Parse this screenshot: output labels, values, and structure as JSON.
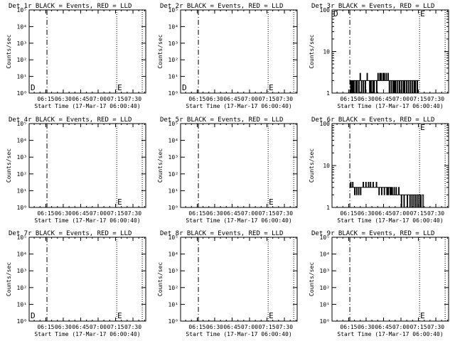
{
  "figure": {
    "background": "#ffffff",
    "foreground": "#000000",
    "event_color": "#000000",
    "lld_color": "#ff0000",
    "xlabel": "Start Time (17-Mar-17 06:00:40)",
    "ylabel": "Counts/sec",
    "x_tick_labels": [
      "06:15",
      "06:30",
      "06:45",
      "07:00",
      "07:15",
      "07:30"
    ]
  },
  "chart_data": [
    {
      "type": "line",
      "title": "Det 1r BLACK = Events, RED = LLD",
      "yscale": "log",
      "ylim": [
        1,
        100000
      ],
      "y_tick_labels": [
        "10⁰",
        "10¹",
        "10²",
        "10³",
        "10⁴",
        "10⁵"
      ],
      "xlim": [
        "06:00:40",
        "07:41:00"
      ],
      "markers": [
        {
          "label": "D",
          "x": "06:01:30",
          "style": "none"
        },
        {
          "label": "",
          "x": "06:16:00",
          "style": "dashdot"
        },
        {
          "label": "E",
          "x": "07:16:00",
          "style": "dotted"
        },
        {
          "label": "",
          "x": "07:38:00",
          "style": "dotted"
        }
      ],
      "series": []
    },
    {
      "type": "line",
      "title": "Det 2r BLACK = Events, RED = LLD",
      "yscale": "log",
      "ylim": [
        1,
        100000
      ],
      "y_tick_labels": [
        "10⁰",
        "10¹",
        "10²",
        "10³",
        "10⁴",
        "10⁵"
      ],
      "xlim": [
        "06:00:40",
        "07:41:00"
      ],
      "markers": [
        {
          "label": "D",
          "x": "06:01:30",
          "style": "none"
        },
        {
          "label": "",
          "x": "06:16:00",
          "style": "dashdot"
        },
        {
          "label": "E",
          "x": "07:16:00",
          "style": "dotted"
        },
        {
          "label": "",
          "x": "07:38:00",
          "style": "dotted"
        }
      ],
      "series": []
    },
    {
      "type": "line",
      "title": "Det 3r BLACK = Events, RED = LLD",
      "yscale": "log",
      "ylim": [
        1,
        100
      ],
      "y_tick_labels": [
        "1",
        "10",
        "100"
      ],
      "xlim": [
        "06:00:40",
        "07:41:00"
      ],
      "markers": [
        {
          "label": "D",
          "x": "06:01:30",
          "style": "none"
        },
        {
          "label": "",
          "x": "06:16:00",
          "style": "dashdot"
        },
        {
          "label": "E",
          "x": "07:16:00",
          "style": "dotted"
        },
        {
          "label": "",
          "x": "07:38:00",
          "style": "dotted"
        }
      ],
      "series": [
        {
          "x_start": "06:16:00",
          "x_end": "07:16:00",
          "values": [
            1,
            2,
            1,
            2,
            1,
            2,
            1,
            2,
            2,
            1,
            2,
            1,
            2,
            2,
            1,
            2,
            3,
            2,
            1,
            2,
            2,
            1,
            2,
            2,
            1,
            2,
            2,
            3,
            2,
            2,
            2,
            1,
            2,
            1,
            2,
            2,
            1,
            2,
            1,
            2,
            2,
            2,
            1,
            2,
            3,
            2,
            2,
            3,
            2,
            3,
            2,
            2,
            3,
            2,
            3,
            2,
            2,
            3,
            2,
            2,
            3,
            2,
            1,
            2,
            2,
            1,
            2,
            2,
            1,
            2,
            1,
            2,
            1,
            2,
            2,
            1,
            2,
            2,
            1,
            2,
            2,
            1,
            2,
            2,
            1,
            2,
            1,
            2,
            2,
            1,
            2,
            2,
            1,
            2,
            2,
            1,
            2,
            2,
            1,
            2,
            2,
            1,
            2,
            1,
            2,
            2,
            1,
            2,
            2,
            2
          ]
        }
      ]
    },
    {
      "type": "line",
      "title": "Det 4r BLACK = Events, RED = LLD",
      "yscale": "log",
      "ylim": [
        1,
        100000
      ],
      "y_tick_labels": [
        "10⁰",
        "10¹",
        "10²",
        "10³",
        "10⁴",
        "10⁵"
      ],
      "xlim": [
        "06:00:40",
        "07:41:00"
      ],
      "markers": [
        {
          "label": "",
          "x": "06:16:00",
          "style": "dashdot"
        },
        {
          "label": "E",
          "x": "07:16:00",
          "style": "dotted"
        },
        {
          "label": "",
          "x": "07:38:00",
          "style": "dotted"
        }
      ],
      "series": []
    },
    {
      "type": "line",
      "title": "Det 5r BLACK = Events, RED = LLD",
      "yscale": "log",
      "ylim": [
        1,
        100000
      ],
      "y_tick_labels": [
        "10⁰",
        "10¹",
        "10²",
        "10³",
        "10⁴",
        "10⁵"
      ],
      "xlim": [
        "06:00:40",
        "07:41:00"
      ],
      "markers": [
        {
          "label": "",
          "x": "06:16:00",
          "style": "dashdot"
        },
        {
          "label": "E",
          "x": "07:16:00",
          "style": "dotted"
        },
        {
          "label": "",
          "x": "07:38:00",
          "style": "dotted"
        }
      ],
      "series": []
    },
    {
      "type": "line",
      "title": "Det 6r BLACK = Events, RED = LLD",
      "yscale": "log",
      "ylim": [
        1,
        100
      ],
      "y_tick_labels": [
        "1",
        "10",
        "100"
      ],
      "xlim": [
        "06:00:40",
        "07:41:00"
      ],
      "markers": [
        {
          "label": "",
          "x": "06:16:00",
          "style": "dashdot"
        },
        {
          "label": "E",
          "x": "07:16:00",
          "style": "dotted"
        },
        {
          "label": "",
          "x": "07:38:00",
          "style": "dotted"
        }
      ],
      "series": [
        {
          "x_start": "06:16:00",
          "x_end": "07:20:00",
          "values": [
            3,
            4,
            3,
            3,
            4,
            3,
            3,
            2,
            3,
            3,
            2,
            3,
            3,
            2,
            3,
            3,
            2,
            3,
            3,
            3,
            4,
            3,
            3,
            3,
            4,
            3,
            3,
            3,
            4,
            3,
            3,
            4,
            3,
            3,
            3,
            4,
            3,
            3,
            3,
            3,
            4,
            3,
            3,
            3,
            2,
            3,
            3,
            3,
            2,
            3,
            3,
            3,
            2,
            3,
            3,
            3,
            2,
            3,
            2,
            3,
            3,
            2,
            3,
            2,
            3,
            2,
            2,
            3,
            2,
            2,
            3,
            2,
            2,
            2,
            3,
            2,
            2,
            2,
            1,
            2,
            2,
            2,
            1,
            2,
            2,
            2,
            2,
            1,
            2,
            2,
            2,
            1,
            2,
            2,
            1,
            2,
            2,
            1,
            2,
            2,
            1,
            2,
            2,
            1,
            2,
            2,
            1,
            2,
            1,
            1,
            2,
            2,
            1
          ]
        }
      ]
    },
    {
      "type": "line",
      "title": "Det 7r BLACK = Events, RED = LLD",
      "yscale": "log",
      "ylim": [
        1,
        100000
      ],
      "y_tick_labels": [
        "10⁰",
        "10¹",
        "10²",
        "10³",
        "10⁴",
        "10⁵"
      ],
      "xlim": [
        "06:00:40",
        "07:41:00"
      ],
      "markers": [
        {
          "label": "D",
          "x": "06:01:30",
          "style": "none"
        },
        {
          "label": "",
          "x": "06:16:00",
          "style": "dashdot"
        },
        {
          "label": "E",
          "x": "07:16:00",
          "style": "dotted"
        },
        {
          "label": "",
          "x": "07:38:00",
          "style": "dotted"
        }
      ],
      "series": []
    },
    {
      "type": "line",
      "title": "Det 8r BLACK = Events, RED = LLD",
      "yscale": "log",
      "ylim": [
        1,
        100000
      ],
      "y_tick_labels": [
        "10⁰",
        "10¹",
        "10²",
        "10³",
        "10⁴",
        "10⁵"
      ],
      "xlim": [
        "06:00:40",
        "07:41:00"
      ],
      "markers": [
        {
          "label": "",
          "x": "06:16:00",
          "style": "dashdot"
        },
        {
          "label": "E",
          "x": "07:16:00",
          "style": "dotted"
        },
        {
          "label": "",
          "x": "07:38:00",
          "style": "dotted"
        }
      ],
      "series": []
    },
    {
      "type": "line",
      "title": "Det 9r BLACK = Events, RED = LLD",
      "yscale": "log",
      "ylim": [
        1,
        100000
      ],
      "y_tick_labels": [
        "10⁰",
        "10¹",
        "10²",
        "10³",
        "10⁴",
        "10⁵"
      ],
      "xlim": [
        "06:00:40",
        "07:41:00"
      ],
      "markers": [
        {
          "label": "",
          "x": "06:16:00",
          "style": "dashdot"
        },
        {
          "label": "E",
          "x": "07:16:00",
          "style": "dotted"
        },
        {
          "label": "",
          "x": "07:38:00",
          "style": "dotted"
        }
      ],
      "series": []
    }
  ]
}
